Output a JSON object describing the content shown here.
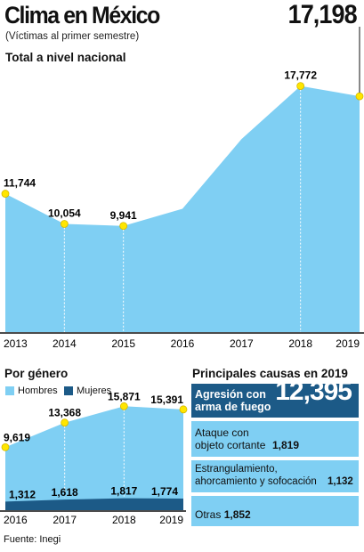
{
  "header": {
    "title": "Clima en México",
    "subtitle": "(Víctimas al primer semestre)"
  },
  "national": {
    "section_title": "Total a nivel nacional",
    "highlight_value": "17,198"
  },
  "gender": {
    "section_title": "Por género",
    "legend": [
      {
        "label": "Hombres",
        "color": "#7fcff3"
      },
      {
        "label": "Mujeres",
        "color": "#1c5a87"
      }
    ]
  },
  "causes": {
    "section_title": "Principales causas en 2019",
    "items": [
      {
        "label": "Agresión con arma de fuego",
        "value": "12,395"
      },
      {
        "label": "Ataque con objeto cortante",
        "value": "1,819"
      },
      {
        "label": "Estrangulamiento, ahorcamiento y sofocación",
        "value": "1,132"
      },
      {
        "label": "Otras",
        "value": "1,852"
      }
    ]
  },
  "source": "Fuente: Inegi",
  "colors": {
    "area": "#7fcff3",
    "dark": "#1c5a87",
    "marker": "#ffe600",
    "marker_stroke": "#d4b800"
  },
  "chart_data": [
    {
      "type": "area",
      "title": "Total a nivel nacional",
      "categories": [
        "2013",
        "2014",
        "2015",
        "2016",
        "2017",
        "2018",
        "2019"
      ],
      "series": [
        {
          "values": [
            11744,
            10054,
            9941,
            10900,
            14800,
            17772,
            17198
          ]
        }
      ],
      "data_labels": [
        "11,744",
        "10,054",
        "9,941",
        null,
        null,
        "17,772",
        "17,198"
      ],
      "markers": [
        true,
        true,
        true,
        false,
        false,
        true,
        true
      ],
      "ylim": [
        4000,
        18500
      ]
    },
    {
      "type": "area",
      "title": "Por género",
      "categories": [
        "2016",
        "2017",
        "2018",
        "2019"
      ],
      "series": [
        {
          "name": "Hombres",
          "values": [
            9619,
            13368,
            15871,
            15391
          ]
        },
        {
          "name": "Mujeres",
          "values": [
            1312,
            1618,
            1817,
            1774
          ]
        }
      ],
      "data_labels_hombres": [
        "9,619",
        "13,368",
        "15,871",
        "15,391"
      ],
      "data_labels_mujeres": [
        "1,312",
        "1,618",
        "1,817",
        "1,774"
      ],
      "ylim": [
        0,
        17000
      ]
    },
    {
      "type": "bar",
      "title": "Principales causas en 2019",
      "categories": [
        "Agresión con arma de fuego",
        "Ataque con objeto cortante",
        "Estrangulamiento, ahorcamiento y sofocación",
        "Otras"
      ],
      "values": [
        12395,
        1819,
        1132,
        1852
      ]
    }
  ]
}
